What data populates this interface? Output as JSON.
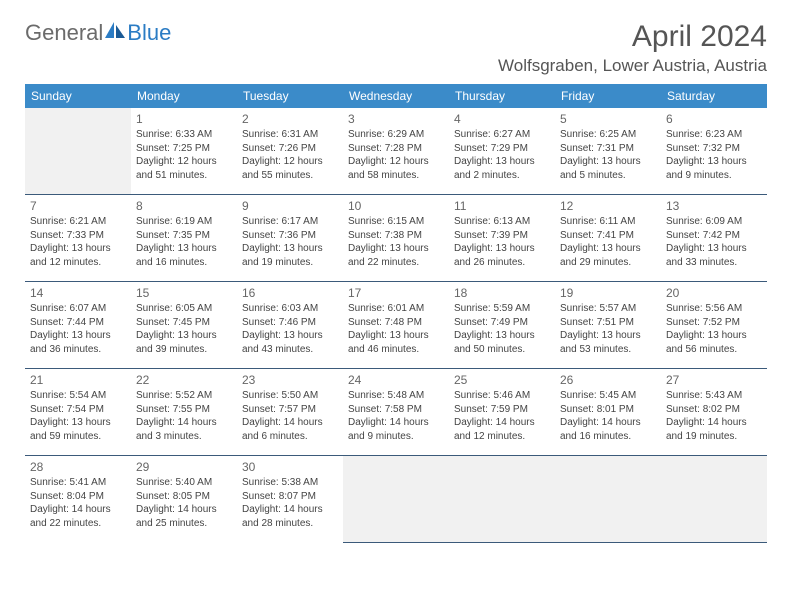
{
  "brand": {
    "word1": "General",
    "word2": "Blue"
  },
  "title": "April 2024",
  "location": "Wolfsgraben, Lower Austria, Austria",
  "colors": {
    "header_bg": "#3b8bc9",
    "header_text": "#ffffff",
    "cell_border": "#3b5a7a",
    "empty_bg": "#f1f1f1",
    "text": "#444444",
    "brand_grey": "#6b6b6b",
    "brand_blue": "#2b7cc4"
  },
  "layout": {
    "weeks": 5,
    "cols": 7,
    "cell_font_size": 10,
    "header_font_size": 12
  },
  "weekdays": [
    "Sunday",
    "Monday",
    "Tuesday",
    "Wednesday",
    "Thursday",
    "Friday",
    "Saturday"
  ],
  "cells": [
    {
      "empty": true
    },
    {
      "day": "1",
      "sunrise": "Sunrise: 6:33 AM",
      "sunset": "Sunset: 7:25 PM",
      "dl1": "Daylight: 12 hours",
      "dl2": "and 51 minutes."
    },
    {
      "day": "2",
      "sunrise": "Sunrise: 6:31 AM",
      "sunset": "Sunset: 7:26 PM",
      "dl1": "Daylight: 12 hours",
      "dl2": "and 55 minutes."
    },
    {
      "day": "3",
      "sunrise": "Sunrise: 6:29 AM",
      "sunset": "Sunset: 7:28 PM",
      "dl1": "Daylight: 12 hours",
      "dl2": "and 58 minutes."
    },
    {
      "day": "4",
      "sunrise": "Sunrise: 6:27 AM",
      "sunset": "Sunset: 7:29 PM",
      "dl1": "Daylight: 13 hours",
      "dl2": "and 2 minutes."
    },
    {
      "day": "5",
      "sunrise": "Sunrise: 6:25 AM",
      "sunset": "Sunset: 7:31 PM",
      "dl1": "Daylight: 13 hours",
      "dl2": "and 5 minutes."
    },
    {
      "day": "6",
      "sunrise": "Sunrise: 6:23 AM",
      "sunset": "Sunset: 7:32 PM",
      "dl1": "Daylight: 13 hours",
      "dl2": "and 9 minutes."
    },
    {
      "day": "7",
      "sunrise": "Sunrise: 6:21 AM",
      "sunset": "Sunset: 7:33 PM",
      "dl1": "Daylight: 13 hours",
      "dl2": "and 12 minutes."
    },
    {
      "day": "8",
      "sunrise": "Sunrise: 6:19 AM",
      "sunset": "Sunset: 7:35 PM",
      "dl1": "Daylight: 13 hours",
      "dl2": "and 16 minutes."
    },
    {
      "day": "9",
      "sunrise": "Sunrise: 6:17 AM",
      "sunset": "Sunset: 7:36 PM",
      "dl1": "Daylight: 13 hours",
      "dl2": "and 19 minutes."
    },
    {
      "day": "10",
      "sunrise": "Sunrise: 6:15 AM",
      "sunset": "Sunset: 7:38 PM",
      "dl1": "Daylight: 13 hours",
      "dl2": "and 22 minutes."
    },
    {
      "day": "11",
      "sunrise": "Sunrise: 6:13 AM",
      "sunset": "Sunset: 7:39 PM",
      "dl1": "Daylight: 13 hours",
      "dl2": "and 26 minutes."
    },
    {
      "day": "12",
      "sunrise": "Sunrise: 6:11 AM",
      "sunset": "Sunset: 7:41 PM",
      "dl1": "Daylight: 13 hours",
      "dl2": "and 29 minutes."
    },
    {
      "day": "13",
      "sunrise": "Sunrise: 6:09 AM",
      "sunset": "Sunset: 7:42 PM",
      "dl1": "Daylight: 13 hours",
      "dl2": "and 33 minutes."
    },
    {
      "day": "14",
      "sunrise": "Sunrise: 6:07 AM",
      "sunset": "Sunset: 7:44 PM",
      "dl1": "Daylight: 13 hours",
      "dl2": "and 36 minutes."
    },
    {
      "day": "15",
      "sunrise": "Sunrise: 6:05 AM",
      "sunset": "Sunset: 7:45 PM",
      "dl1": "Daylight: 13 hours",
      "dl2": "and 39 minutes."
    },
    {
      "day": "16",
      "sunrise": "Sunrise: 6:03 AM",
      "sunset": "Sunset: 7:46 PM",
      "dl1": "Daylight: 13 hours",
      "dl2": "and 43 minutes."
    },
    {
      "day": "17",
      "sunrise": "Sunrise: 6:01 AM",
      "sunset": "Sunset: 7:48 PM",
      "dl1": "Daylight: 13 hours",
      "dl2": "and 46 minutes."
    },
    {
      "day": "18",
      "sunrise": "Sunrise: 5:59 AM",
      "sunset": "Sunset: 7:49 PM",
      "dl1": "Daylight: 13 hours",
      "dl2": "and 50 minutes."
    },
    {
      "day": "19",
      "sunrise": "Sunrise: 5:57 AM",
      "sunset": "Sunset: 7:51 PM",
      "dl1": "Daylight: 13 hours",
      "dl2": "and 53 minutes."
    },
    {
      "day": "20",
      "sunrise": "Sunrise: 5:56 AM",
      "sunset": "Sunset: 7:52 PM",
      "dl1": "Daylight: 13 hours",
      "dl2": "and 56 minutes."
    },
    {
      "day": "21",
      "sunrise": "Sunrise: 5:54 AM",
      "sunset": "Sunset: 7:54 PM",
      "dl1": "Daylight: 13 hours",
      "dl2": "and 59 minutes."
    },
    {
      "day": "22",
      "sunrise": "Sunrise: 5:52 AM",
      "sunset": "Sunset: 7:55 PM",
      "dl1": "Daylight: 14 hours",
      "dl2": "and 3 minutes."
    },
    {
      "day": "23",
      "sunrise": "Sunrise: 5:50 AM",
      "sunset": "Sunset: 7:57 PM",
      "dl1": "Daylight: 14 hours",
      "dl2": "and 6 minutes."
    },
    {
      "day": "24",
      "sunrise": "Sunrise: 5:48 AM",
      "sunset": "Sunset: 7:58 PM",
      "dl1": "Daylight: 14 hours",
      "dl2": "and 9 minutes."
    },
    {
      "day": "25",
      "sunrise": "Sunrise: 5:46 AM",
      "sunset": "Sunset: 7:59 PM",
      "dl1": "Daylight: 14 hours",
      "dl2": "and 12 minutes."
    },
    {
      "day": "26",
      "sunrise": "Sunrise: 5:45 AM",
      "sunset": "Sunset: 8:01 PM",
      "dl1": "Daylight: 14 hours",
      "dl2": "and 16 minutes."
    },
    {
      "day": "27",
      "sunrise": "Sunrise: 5:43 AM",
      "sunset": "Sunset: 8:02 PM",
      "dl1": "Daylight: 14 hours",
      "dl2": "and 19 minutes."
    },
    {
      "day": "28",
      "sunrise": "Sunrise: 5:41 AM",
      "sunset": "Sunset: 8:04 PM",
      "dl1": "Daylight: 14 hours",
      "dl2": "and 22 minutes."
    },
    {
      "day": "29",
      "sunrise": "Sunrise: 5:40 AM",
      "sunset": "Sunset: 8:05 PM",
      "dl1": "Daylight: 14 hours",
      "dl2": "and 25 minutes."
    },
    {
      "day": "30",
      "sunrise": "Sunrise: 5:38 AM",
      "sunset": "Sunset: 8:07 PM",
      "dl1": "Daylight: 14 hours",
      "dl2": "and 28 minutes."
    },
    {
      "empty": true
    },
    {
      "empty": true
    },
    {
      "empty": true
    },
    {
      "empty": true
    }
  ]
}
